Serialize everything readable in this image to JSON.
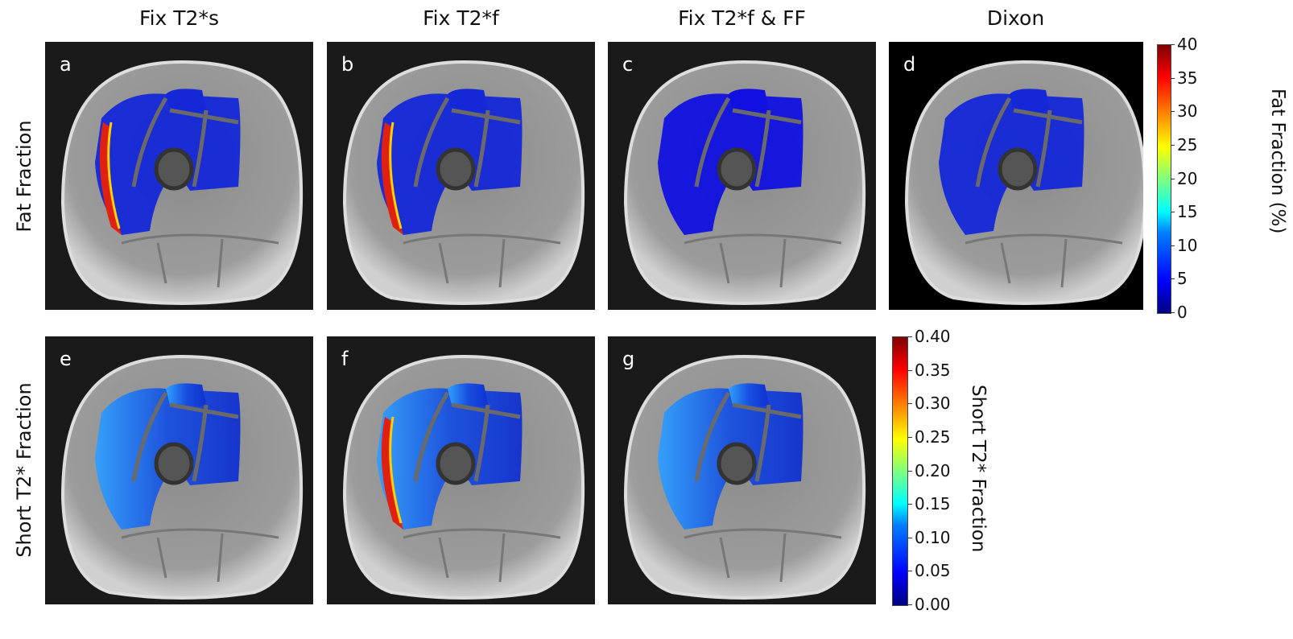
{
  "columns": [
    "Fix T2*s",
    "Fix T2*f",
    "Fix T2*f & FF",
    "Dixon"
  ],
  "rows": [
    "Fat Fraction",
    "Short T2* Fraction"
  ],
  "panels": [
    {
      "label": "a",
      "row": 0,
      "col": 0,
      "map": "ff_fix_t2s"
    },
    {
      "label": "b",
      "row": 0,
      "col": 1,
      "map": "ff_fix_t2f"
    },
    {
      "label": "c",
      "row": 0,
      "col": 2,
      "map": "ff_fix_t2f_ff"
    },
    {
      "label": "d",
      "row": 0,
      "col": 3,
      "map": "ff_dixon"
    },
    {
      "label": "e",
      "row": 1,
      "col": 0,
      "map": "st2_fix_t2s"
    },
    {
      "label": "f",
      "row": 1,
      "col": 1,
      "map": "st2_fix_t2f"
    },
    {
      "label": "g",
      "row": 1,
      "col": 2,
      "map": "st2_fix_t2f_ff"
    }
  ],
  "colorbars": [
    {
      "title": "Fat Fraction (%)",
      "range": [
        0,
        40
      ],
      "ticks": [
        "40",
        "35",
        "30",
        "25",
        "20",
        "15",
        "10",
        "5",
        "0"
      ],
      "colormap": "jet"
    },
    {
      "title": "Short T2* Fraction",
      "range": [
        0,
        0.4
      ],
      "ticks": [
        "0.40",
        "0.35",
        "0.30",
        "0.25",
        "0.20",
        "0.15",
        "0.10",
        "0.05",
        "0.00"
      ],
      "colormap": "jet"
    }
  ]
}
